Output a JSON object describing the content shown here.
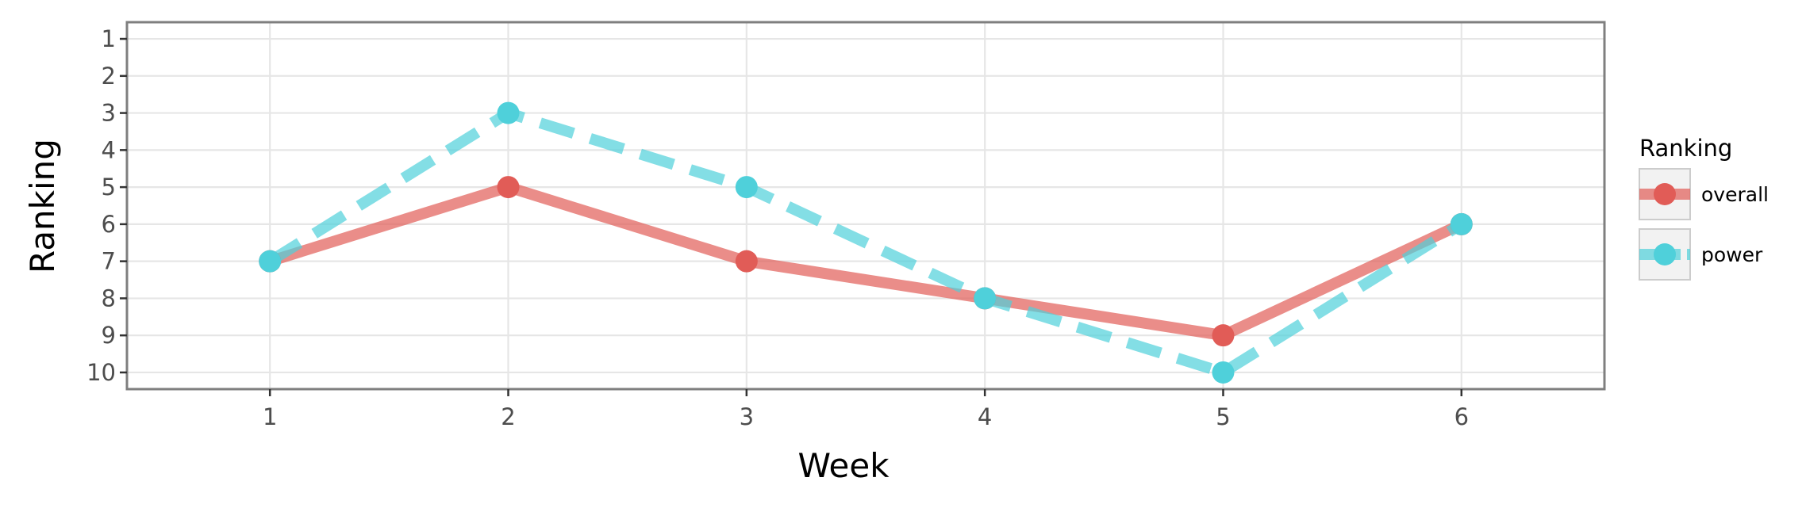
{
  "chart_data": {
    "type": "line",
    "xlabel": "Week",
    "ylabel": "Ranking",
    "x": [
      1,
      2,
      3,
      4,
      5,
      6
    ],
    "x_ticks": [
      "1",
      "2",
      "3",
      "4",
      "5",
      "6"
    ],
    "y_ticks": [
      "1",
      "2",
      "3",
      "4",
      "5",
      "6",
      "7",
      "8",
      "9",
      "10"
    ],
    "xlim": [
      0.4,
      6.6
    ],
    "ylim": [
      10.45,
      0.55
    ],
    "y_reversed": true,
    "grid": true,
    "legend": {
      "title": "Ranking",
      "position": "right"
    },
    "series": [
      {
        "name": "overall",
        "values": [
          7,
          5,
          7,
          8,
          9,
          6
        ],
        "color": "#e15c57",
        "linestyle": "solid"
      },
      {
        "name": "power",
        "values": [
          7,
          3,
          5,
          8,
          10,
          6
        ],
        "color": "#4fd0da",
        "linestyle": "dashed"
      }
    ]
  }
}
